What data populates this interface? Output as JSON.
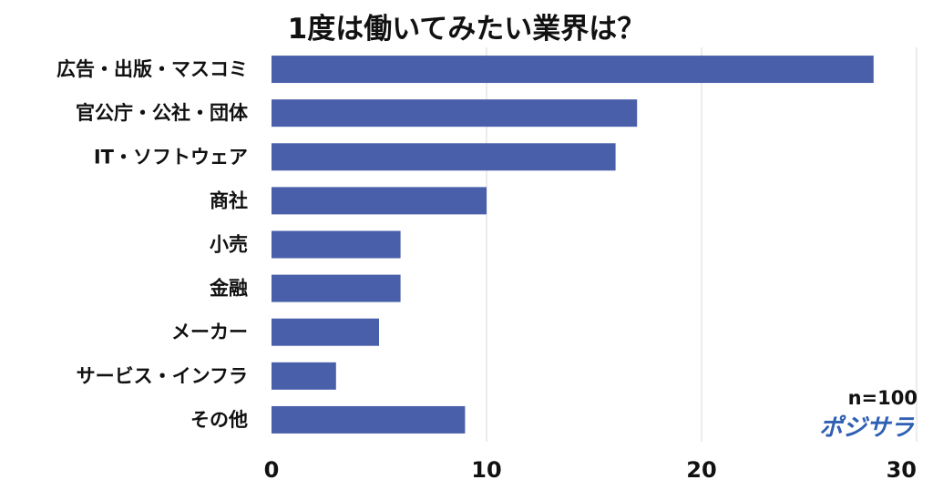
{
  "chart_data": {
    "type": "bar",
    "orientation": "horizontal",
    "title": "1度は働いてみたい業界は？",
    "categories": [
      "広告・出版・マスコミ",
      "官公庁・公社・団体",
      "IT・ソフトウェア",
      "商社",
      "小売",
      "金融",
      "メーカー",
      "サービス・インフラ",
      "その他"
    ],
    "values": [
      28,
      17,
      16,
      10,
      6,
      6,
      5,
      3,
      9
    ],
    "xticks": [
      "0",
      "10",
      "20",
      "30"
    ],
    "xlim": [
      0,
      30
    ],
    "grid": true,
    "bar_color": "#4a5faa",
    "grid_color": "#d9d9d9"
  },
  "annotation": {
    "sample_size": "n=100"
  },
  "logo": {
    "text": "ポジサラ"
  }
}
